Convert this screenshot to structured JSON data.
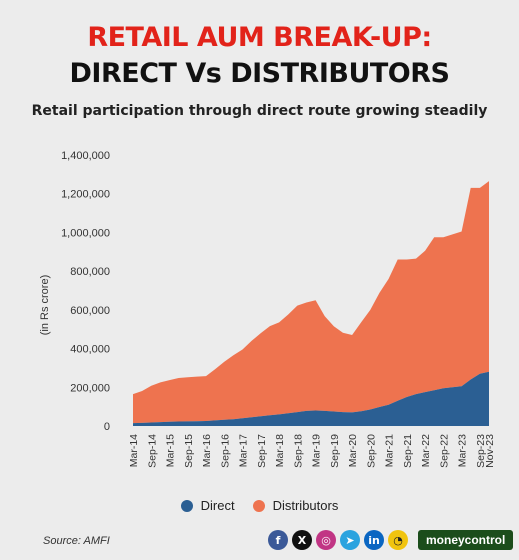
{
  "header": {
    "title_line1": "RETAIL AUM BREAK-UP:",
    "title_line2": "DIRECT Vs DISTRIBUTORS",
    "subtitle": "Retail participation through direct route growing steadily"
  },
  "chart_data": {
    "type": "area",
    "stacked": true,
    "ylabel": "(in Rs crore)",
    "ylim": [
      0,
      1400000
    ],
    "yticks": [
      "1,400,000",
      "1,200,000",
      "1,000,000",
      "800,000",
      "600,000",
      "400,000",
      "200,000",
      "0"
    ],
    "ytick_values": [
      1400000,
      1200000,
      1000000,
      800000,
      600000,
      400000,
      200000,
      0
    ],
    "xtick_labels": [
      "Mar-14",
      "Sep-14",
      "Mar-15",
      "Sep-15",
      "Mar-16",
      "Sep-16",
      "Mar-17",
      "Sep-17",
      "Mar-18",
      "Sep-18",
      "Mar-19",
      "Sep-19",
      "Mar-20",
      "Sep-20",
      "Mar-21",
      "Sep-21",
      "Mar-22",
      "Sep-22",
      "Mar-23",
      "Sep-23",
      "Nov-23"
    ],
    "x": [
      "Mar-14",
      "Jun-14",
      "Sep-14",
      "Dec-14",
      "Mar-15",
      "Jun-15",
      "Sep-15",
      "Dec-15",
      "Mar-16",
      "Jun-16",
      "Sep-16",
      "Dec-16",
      "Mar-17",
      "Jun-17",
      "Sep-17",
      "Dec-17",
      "Mar-18",
      "Jun-18",
      "Sep-18",
      "Dec-18",
      "Mar-19",
      "Jun-19",
      "Sep-19",
      "Dec-19",
      "Mar-20",
      "Jun-20",
      "Sep-20",
      "Dec-20",
      "Mar-21",
      "Jun-21",
      "Sep-21",
      "Dec-21",
      "Mar-22",
      "Jun-22",
      "Sep-22",
      "Dec-22",
      "Mar-23",
      "Jun-23",
      "Sep-23",
      "Nov-23"
    ],
    "series": [
      {
        "name": "Direct",
        "color": "#2b5f93",
        "values": [
          15000,
          16000,
          18000,
          20000,
          22000,
          23000,
          24000,
          25000,
          26000,
          29000,
          32000,
          35000,
          40000,
          45000,
          50000,
          56000,
          60000,
          66000,
          72000,
          78000,
          80000,
          78000,
          75000,
          72000,
          70000,
          76000,
          85000,
          98000,
          110000,
          130000,
          150000,
          165000,
          175000,
          185000,
          195000,
          200000,
          205000,
          240000,
          270000,
          280000
        ]
      },
      {
        "name": "Distributors",
        "color": "#ee734f",
        "values": [
          150000,
          165000,
          190000,
          205000,
          215000,
          225000,
          228000,
          230000,
          232000,
          265000,
          300000,
          330000,
          355000,
          395000,
          430000,
          460000,
          475000,
          510000,
          550000,
          560000,
          570000,
          490000,
          440000,
          410000,
          400000,
          460000,
          515000,
          590000,
          650000,
          730000,
          710000,
          700000,
          730000,
          790000,
          780000,
          790000,
          800000,
          990000,
          960000,
          985000
        ]
      }
    ]
  },
  "legend": [
    {
      "label": "Direct",
      "color": "#2b5f93"
    },
    {
      "label": "Distributors",
      "color": "#ee734f"
    }
  ],
  "footer": {
    "source": "Source: AMFI",
    "brand": "moneycontrol",
    "social_icons": [
      {
        "name": "facebook-icon",
        "glyph": "f",
        "color": "#3b5998"
      },
      {
        "name": "x-icon",
        "glyph": "X",
        "color": "#111111"
      },
      {
        "name": "instagram-icon",
        "glyph": "◎",
        "color": "#c13584"
      },
      {
        "name": "telegram-icon",
        "glyph": "➤",
        "color": "#2aa3df"
      },
      {
        "name": "linkedin-icon",
        "glyph": "in",
        "color": "#0a66c2"
      },
      {
        "name": "snapchat-icon",
        "glyph": "◔",
        "color": "#f1c40f"
      }
    ]
  }
}
